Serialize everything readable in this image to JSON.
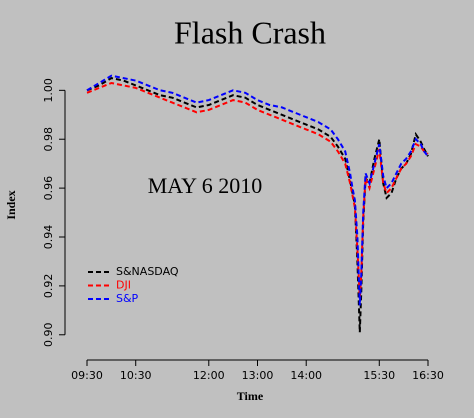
{
  "chart_data": {
    "type": "line",
    "title": "Flash Crash",
    "annotation": "MAY 6 2010",
    "x_label": "Time",
    "y_label": "Index",
    "x": [
      9.5,
      9.75,
      10,
      10.25,
      10.5,
      10.75,
      11,
      11.25,
      11.5,
      11.75,
      12,
      12.25,
      12.5,
      12.75,
      13,
      13.25,
      13.5,
      13.75,
      14,
      14.25,
      14.5,
      14.65,
      14.8,
      14.9,
      14.95,
      15.0,
      15.05,
      15.1,
      15.13,
      15.17,
      15.22,
      15.3,
      15.4,
      15.5,
      15.58,
      15.65,
      15.75,
      15.85,
      15.95,
      16.05,
      16.15,
      16.25,
      16.35,
      16.42,
      16.5
    ],
    "series": [
      {
        "name": "S&NASDAQ",
        "color": "#000000",
        "values": [
          1.0,
          1.002,
          1.005,
          1.004,
          1.002,
          1.0,
          0.998,
          0.997,
          0.995,
          0.993,
          0.994,
          0.996,
          0.998,
          0.997,
          0.994,
          0.992,
          0.99,
          0.988,
          0.986,
          0.984,
          0.981,
          0.977,
          0.972,
          0.963,
          0.958,
          0.953,
          0.93,
          0.901,
          0.918,
          0.946,
          0.964,
          0.962,
          0.972,
          0.98,
          0.962,
          0.956,
          0.958,
          0.964,
          0.968,
          0.97,
          0.974,
          0.982,
          0.979,
          0.976,
          0.973
        ]
      },
      {
        "name": "DJI",
        "color": "#ff0000",
        "values": [
          0.999,
          1.001,
          1.003,
          1.002,
          1.001,
          0.999,
          0.997,
          0.995,
          0.993,
          0.991,
          0.992,
          0.994,
          0.996,
          0.995,
          0.992,
          0.99,
          0.988,
          0.986,
          0.984,
          0.982,
          0.979,
          0.975,
          0.97,
          0.962,
          0.957,
          0.952,
          0.935,
          0.915,
          0.925,
          0.948,
          0.964,
          0.96,
          0.968,
          0.976,
          0.962,
          0.958,
          0.96,
          0.964,
          0.968,
          0.97,
          0.973,
          0.978,
          0.977,
          0.975,
          0.974
        ]
      },
      {
        "name": "S&P",
        "color": "#0000ff",
        "values": [
          1.0,
          1.003,
          1.006,
          1.005,
          1.004,
          1.002,
          1.0,
          0.999,
          0.997,
          0.995,
          0.996,
          0.998,
          1.0,
          0.999,
          0.996,
          0.994,
          0.993,
          0.991,
          0.989,
          0.987,
          0.984,
          0.98,
          0.975,
          0.966,
          0.96,
          0.955,
          0.94,
          0.912,
          0.925,
          0.95,
          0.966,
          0.962,
          0.97,
          0.978,
          0.965,
          0.96,
          0.962,
          0.966,
          0.97,
          0.972,
          0.975,
          0.98,
          0.978,
          0.975,
          0.973
        ]
      }
    ],
    "xlim": [
      9.35,
      16.65
    ],
    "ylim": [
      0.895,
      1.012
    ],
    "xticks": [
      {
        "value": 9.5,
        "label": "09:30"
      },
      {
        "value": 10.5,
        "label": "10:30"
      },
      {
        "value": 12,
        "label": "12:00"
      },
      {
        "value": 13,
        "label": "13:00"
      },
      {
        "value": 14,
        "label": "14:00"
      },
      {
        "value": 15.5,
        "label": "15:30"
      },
      {
        "value": 16.5,
        "label": "16:30"
      }
    ],
    "yticks": [
      {
        "value": 0.9,
        "label": "0.90"
      },
      {
        "value": 0.92,
        "label": "0.92"
      },
      {
        "value": 0.94,
        "label": "0.94"
      },
      {
        "value": 0.96,
        "label": "0.96"
      },
      {
        "value": 0.98,
        "label": "0.98"
      },
      {
        "value": 1.0,
        "label": "1.00"
      }
    ],
    "grid": false,
    "line_style": "dashed",
    "legend": "left"
  }
}
